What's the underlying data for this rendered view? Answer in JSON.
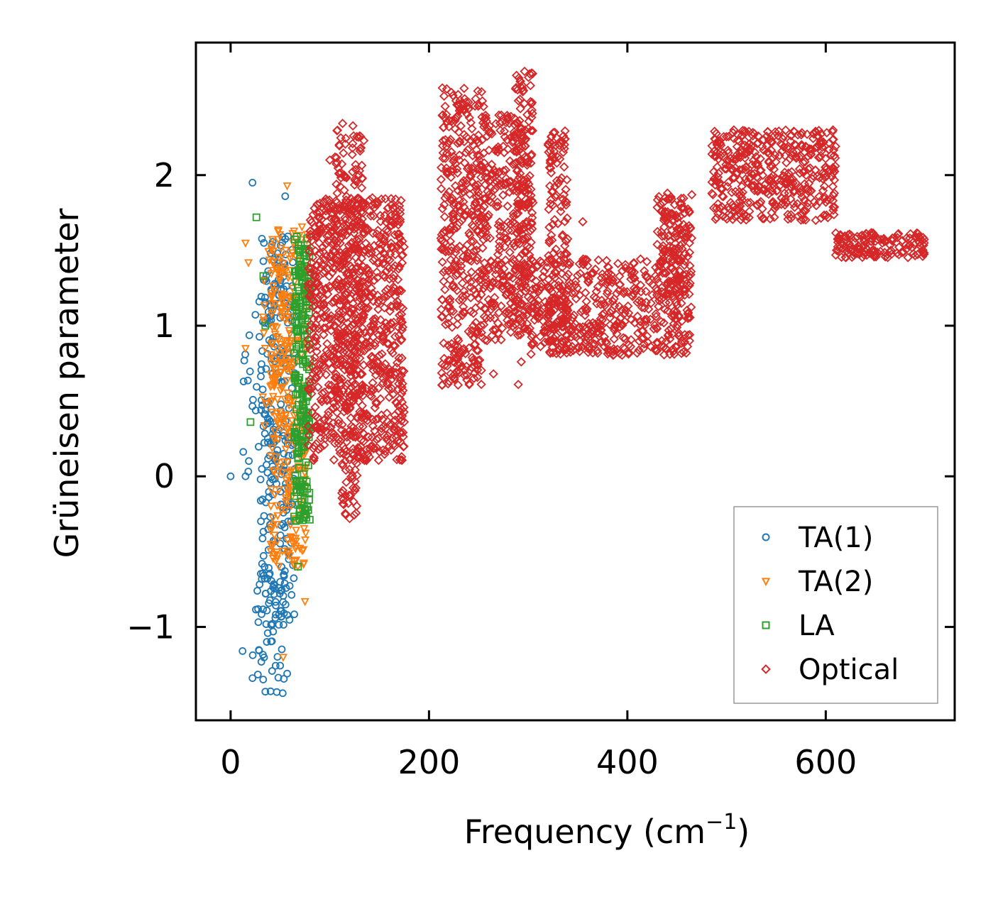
{
  "chart_data": {
    "type": "scatter",
    "xlabel": "Frequency (cm",
    "xlabel_exponent": "−1",
    "xlabel_close": ")",
    "ylabel": "Grüneisen parameter",
    "xlim": [
      -35,
      730
    ],
    "ylim": [
      -1.62,
      2.88
    ],
    "xticks": [
      0,
      200,
      400,
      600
    ],
    "yticks": [
      -1,
      0,
      1,
      2
    ],
    "xtick_labels": [
      "0",
      "200",
      "400",
      "600"
    ],
    "ytick_labels": [
      "−1",
      "0",
      "1",
      "2"
    ],
    "legend_position": "lower-right",
    "series": [
      {
        "name": "TA(1)",
        "label": "TA(1)",
        "color": "#1f77b4",
        "marker": "circle",
        "regions": [
          {
            "x": [
              30,
              65
            ],
            "y": [
              -1.0,
              1.6
            ],
            "n": 260
          },
          {
            "x": [
              22,
              55
            ],
            "y": [
              -1.45,
              -0.6
            ],
            "n": 45
          },
          {
            "x": [
              10,
              45
            ],
            "y": [
              0.0,
              1.2
            ],
            "n": 40
          }
        ],
        "points": [
          [
            0,
            0
          ],
          [
            22,
            1.95
          ],
          [
            55,
            1.86
          ],
          [
            15,
            0.0
          ],
          [
            35,
            -1.43
          ],
          [
            22,
            -1.34
          ],
          [
            12,
            -1.16
          ],
          [
            57,
            -1.31
          ]
        ]
      },
      {
        "name": "TA(2)",
        "label": "TA(2)",
        "color": "#ff7f0e",
        "marker": "triangle-down",
        "regions": [
          {
            "x": [
              40,
              78
            ],
            "y": [
              -0.6,
              1.7
            ],
            "n": 300
          },
          {
            "x": [
              30,
              60
            ],
            "y": [
              0.3,
              1.5
            ],
            "n": 50
          }
        ],
        "points": [
          [
            57,
            1.93
          ],
          [
            15,
            1.55
          ],
          [
            15,
            0.85
          ],
          [
            75,
            -0.83
          ],
          [
            53,
            -1.2
          ],
          [
            18,
            1.42
          ]
        ]
      },
      {
        "name": "LA",
        "label": "LA",
        "color": "#2ca02c",
        "marker": "square",
        "regions": [
          {
            "x": [
              64,
              80
            ],
            "y": [
              -0.3,
              1.6
            ],
            "n": 240
          }
        ],
        "points": [
          [
            26,
            1.72
          ],
          [
            20,
            0.36
          ],
          [
            35,
            1.0
          ],
          [
            33,
            1.33
          ],
          [
            68,
            -0.6
          ]
        ]
      },
      {
        "name": "Optical",
        "label": "Optical",
        "color": "#d62728",
        "marker": "diamond",
        "regions": [
          {
            "x": [
              78,
              175
            ],
            "y": [
              0.1,
              1.85
            ],
            "n": 900
          },
          {
            "x": [
              105,
              135
            ],
            "y": [
              0.5,
              2.35
            ],
            "n": 200
          },
          {
            "x": [
              112,
              128
            ],
            "y": [
              -0.28,
              0.5
            ],
            "n": 50
          },
          {
            "x": [
              212,
              255
            ],
            "y": [
              0.6,
              2.58
            ],
            "n": 400
          },
          {
            "x": [
              255,
              300
            ],
            "y": [
              0.9,
              2.4
            ],
            "n": 300
          },
          {
            "x": [
              285,
              305
            ],
            "y": [
              1.0,
              2.7
            ],
            "n": 150
          },
          {
            "x": [
              320,
              340
            ],
            "y": [
              0.8,
              2.3
            ],
            "n": 150
          },
          {
            "x": [
              300,
              465
            ],
            "y": [
              0.8,
              1.45
            ],
            "n": 500
          },
          {
            "x": [
              430,
              465
            ],
            "y": [
              1.2,
              1.88
            ],
            "n": 150
          },
          {
            "x": [
              485,
              610
            ],
            "y": [
              1.7,
              2.3
            ],
            "n": 450
          },
          {
            "x": [
              610,
              700
            ],
            "y": [
              1.45,
              1.62
            ],
            "n": 150
          }
        ],
        "points": [
          [
            290,
            0.61
          ],
          [
            265,
            0.68
          ],
          [
            355,
            1.69
          ],
          [
            360,
            0.85
          ],
          [
            380,
            0.84
          ],
          [
            100,
            2.1
          ],
          [
            120,
            -0.28
          ],
          [
            293,
            0.76
          ]
        ]
      }
    ]
  }
}
